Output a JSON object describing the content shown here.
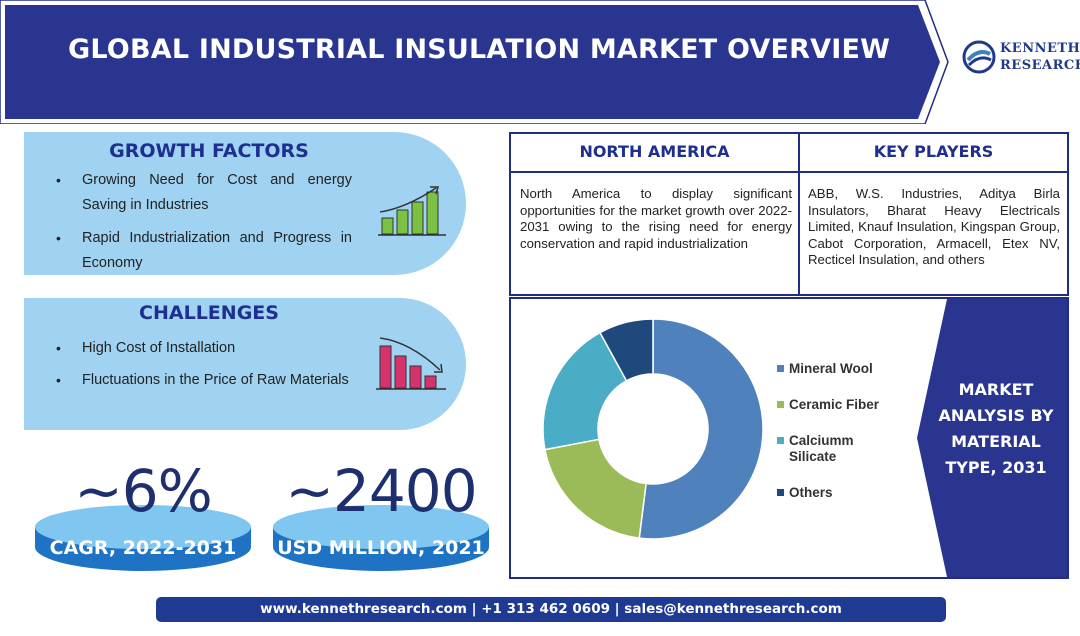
{
  "header": {
    "title": "GLOBAL INDUSTRIAL INSULATION MARKET OVERVIEW",
    "logo_line1": "KENNETH",
    "logo_line2": "RESEARCH"
  },
  "growth_factors": {
    "title": "GROWTH FACTORS",
    "items": [
      "Growing Need for Cost and energy Saving in Industries",
      "Rapid Industrialization and Progress in Economy"
    ]
  },
  "challenges": {
    "title": "CHALLENGES",
    "items": [
      "High Cost of Installation",
      "Fluctuations in the Price of Raw Materials"
    ]
  },
  "stats": {
    "cagr_value": "~6%",
    "cagr_label": "CAGR, 2022-2031",
    "market_value": "~2400",
    "market_label": "USD MILLION, 2021"
  },
  "north_america": {
    "title": "NORTH AMERICA",
    "text": "North America to display significant opportunities for the market growth over 2022-2031 owing to the rising need for energy conservation and rapid industrialization"
  },
  "key_players": {
    "title": "KEY PLAYERS",
    "text": "ABB, W.S. Industries, Aditya Birla Insulators, Bharat Heavy Electricals Limited, Knauf Insulation, Kingspan Group, Cabot Corporation, Armacell, Etex NV, Recticel Insulation, and others"
  },
  "market_analysis": {
    "line1": "MARKET",
    "line2": "ANALYSIS BY",
    "line3": "MATERIAL",
    "line4": "TYPE, 2031"
  },
  "chart_data": {
    "type": "pie",
    "categories": [
      "Mineral Wool",
      "Ceramic Fiber",
      "Calciumm Silicate",
      "Others"
    ],
    "values": [
      52,
      20,
      20,
      8
    ],
    "colors": [
      "#4f81bd",
      "#9bbb59",
      "#4bacc6",
      "#1f497d"
    ],
    "donut": true
  },
  "footer": {
    "text": "www.kennethresearch.com | +1 313 462 0609 | sales@kennethresearch.com"
  },
  "colors": {
    "brand_navy": "#1e2f8f",
    "pill_blue": "#9fd3f1",
    "footer_blue": "#1f3a93"
  }
}
